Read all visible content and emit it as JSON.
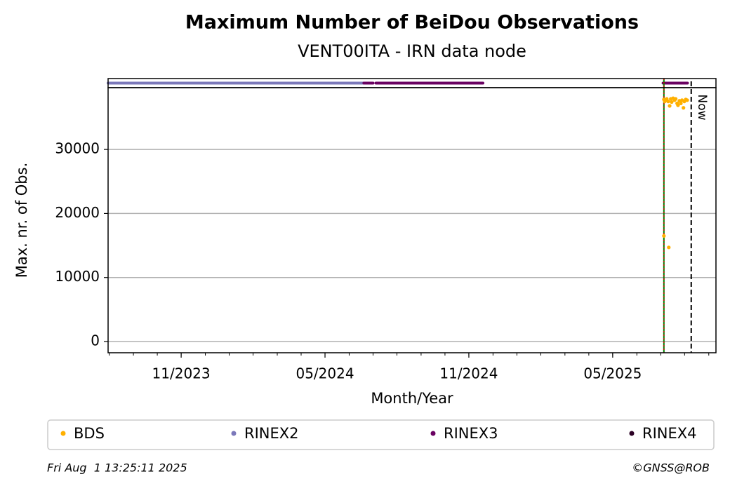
{
  "chart_data": {
    "type": "scatter",
    "title": "Maximum Number of BeiDou Observations",
    "subtitle": "VENT00ITA - IRN data node",
    "xlabel": "Month/Year",
    "ylabel": "Max. nr. of Obs.",
    "xlim": [
      2023.579,
      2025.692
    ],
    "ylim": [
      -1750,
      39650
    ],
    "yticks": [
      0,
      10000,
      20000,
      30000
    ],
    "xticks": [
      {
        "value": 2023.833,
        "label": "11/2023"
      },
      {
        "value": 2024.333,
        "label": "05/2024"
      },
      {
        "value": 2024.833,
        "label": "11/2024"
      },
      {
        "value": 2025.333,
        "label": "05/2025"
      }
    ],
    "xminorticks": [
      2023.583,
      2023.667,
      2023.75,
      2023.833,
      2023.917,
      2024.0,
      2024.083,
      2024.167,
      2024.25,
      2024.333,
      2024.417,
      2024.5,
      2024.583,
      2024.667,
      2024.75,
      2024.833,
      2024.917,
      2025.0,
      2025.083,
      2025.167,
      2025.25,
      2025.333,
      2025.417,
      2025.5,
      2025.583,
      2025.667
    ],
    "grid": true,
    "series": [
      {
        "name": "BDS",
        "color": "#ffb000",
        "x": [
          2025.511,
          2025.511,
          2025.514,
          2025.516,
          2025.521,
          2025.526,
          2025.528,
          2025.531,
          2025.535,
          2025.538,
          2025.543,
          2025.548,
          2025.552,
          2025.557,
          2025.56,
          2025.565,
          2025.57,
          2025.574,
          2025.579,
          2025.582,
          2025.587,
          2025.592
        ],
        "values": [
          16500,
          37800,
          37500,
          37600,
          37900,
          37500,
          14700,
          36800,
          37900,
          37400,
          38000,
          37700,
          37900,
          37200,
          36900,
          37600,
          37200,
          37700,
          36500,
          37500,
          37800,
          37700
        ]
      }
    ],
    "strip": [
      {
        "name": "RINEX2",
        "color": "#7b78ba",
        "segments": [
          [
            2023.579,
            2024.47
          ]
        ]
      },
      {
        "name": "RINEX3",
        "color": "#6a0262",
        "segments": [
          [
            2024.468,
            2024.5
          ],
          [
            2024.51,
            2024.882
          ],
          [
            2025.508,
            2025.593
          ]
        ]
      },
      {
        "name": "RINEX4",
        "color": "#2b0125",
        "segments": []
      }
    ],
    "change_x": 2025.511,
    "now": {
      "label": "Now",
      "x": 2025.606
    },
    "footer": {
      "left": "Fri Aug  1 13:25:11 2025",
      "right": "©GNSS@ROB"
    }
  }
}
